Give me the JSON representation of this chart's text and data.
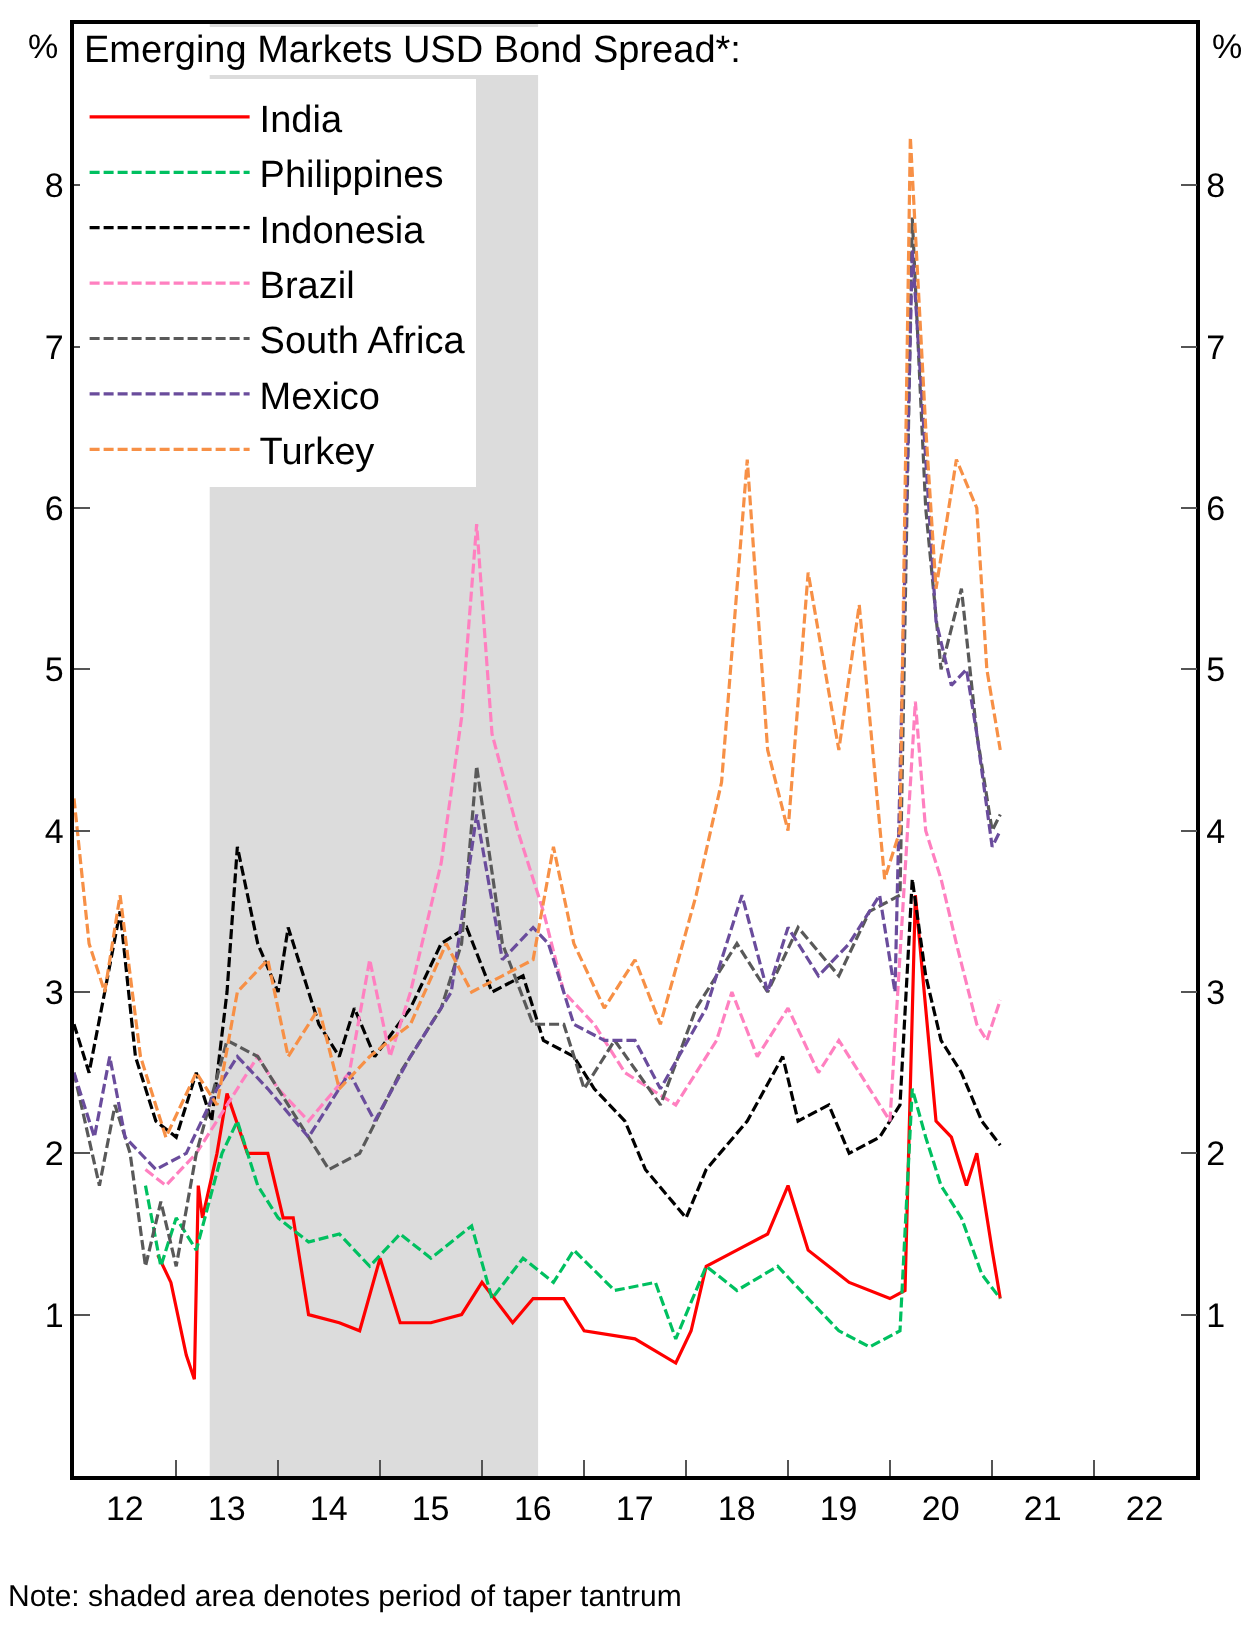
{
  "chart_data": {
    "type": "line",
    "title": "Emerging Markets USD Bond Spread*:",
    "ylabel": "%",
    "y2label": "%",
    "annotations": [
      "Note: shaded area denotes period of taper tantrum"
    ],
    "xlim": [
      "2012-01-01",
      "2023-01-01"
    ],
    "ylim": [
      0,
      9
    ],
    "y2lim": [
      0,
      9
    ],
    "xticks": [
      {
        "value": "2012-07",
        "label": "12"
      },
      {
        "value": "2013-07",
        "label": "13"
      },
      {
        "value": "2014-07",
        "label": "14"
      },
      {
        "value": "2015-07",
        "label": "15"
      },
      {
        "value": "2016-07",
        "label": "16"
      },
      {
        "value": "2017-07",
        "label": "17"
      },
      {
        "value": "2018-07",
        "label": "18"
      },
      {
        "value": "2019-07",
        "label": "19"
      },
      {
        "value": "2020-07",
        "label": "20"
      },
      {
        "value": "2021-07",
        "label": "21"
      },
      {
        "value": "2022-07",
        "label": "22"
      },
      {
        "value": "2013-01",
        "label": null
      },
      {
        "value": "2014-01",
        "label": null
      },
      {
        "value": "2015-01",
        "label": null
      },
      {
        "value": "2016-01",
        "label": null
      },
      {
        "value": "2017-01",
        "label": null
      },
      {
        "value": "2018-01",
        "label": null
      },
      {
        "value": "2019-01",
        "label": null
      },
      {
        "value": "2020-01",
        "label": null
      },
      {
        "value": "2021-01",
        "label": null
      },
      {
        "value": "2022-01",
        "label": null
      }
    ],
    "yticks": [
      1,
      2,
      3,
      4,
      5,
      6,
      7,
      8
    ],
    "y2ticks": [
      1,
      2,
      3,
      4,
      5,
      6,
      7,
      8
    ],
    "bands": [
      {
        "axis": "x",
        "from": "2013-05-01",
        "to": "2016-07-20",
        "color": "#dcdcdc"
      }
    ],
    "grid": false,
    "legend": "top left",
    "marker": "none",
    "series": [
      {
        "name": "India",
        "color": "#ff0000",
        "line_style": "solid",
        "x": [
          "2012-10-27",
          "2012-12-13",
          "2013-02-06",
          "2013-03-07",
          "2013-03-21",
          "2013-04-05",
          "2013-05-27",
          "2013-07-02",
          "2013-09-13",
          "2013-11-25",
          "2014-01-19",
          "2014-02-24",
          "2014-04-20",
          "2014-08-08",
          "2014-10-20",
          "2015-01-01",
          "2015-03-14",
          "2015-07-02",
          "2015-10-20",
          "2016-01-01",
          "2016-04-20",
          "2016-07-02",
          "2016-10-20",
          "2017-01-01",
          "2017-07-02",
          "2017-11-25",
          "2018-01-19",
          "2018-03-14",
          "2018-07-02",
          "2018-10-20",
          "2019-01-01",
          "2019-03-14",
          "2019-08-08",
          "2020-01-01",
          "2020-02-24",
          "2020-04-01",
          "2020-06-14",
          "2020-08-08",
          "2020-10-01",
          "2020-11-07",
          "2021-01-01",
          "2021-01-30"
        ],
        "values": [
          1.37,
          1.2,
          0.75,
          0.6,
          1.8,
          1.6,
          2.0,
          2.37,
          2.0,
          2.0,
          1.6,
          1.6,
          1.0,
          0.95,
          0.9,
          1.35,
          0.95,
          0.95,
          1.0,
          1.2,
          0.95,
          1.1,
          1.1,
          0.9,
          0.85,
          0.7,
          0.9,
          1.3,
          1.4,
          1.5,
          1.8,
          1.4,
          1.2,
          1.1,
          1.15,
          3.6,
          2.2,
          2.1,
          1.8,
          2.0,
          1.4,
          1.1
        ]
      },
      {
        "name": "Philippines",
        "color": "#00c060",
        "line_style": "dashed",
        "x": [
          "2012-09-13",
          "2012-11-07",
          "2013-01-01",
          "2013-03-14",
          "2013-06-14",
          "2013-08-08",
          "2013-10-20",
          "2014-01-01",
          "2014-04-20",
          "2014-08-08",
          "2014-11-25",
          "2015-03-14",
          "2015-07-02",
          "2015-11-25",
          "2016-02-06",
          "2016-05-27",
          "2016-09-13",
          "2016-11-25",
          "2017-04-20",
          "2017-09-13",
          "2017-11-25",
          "2018-03-14",
          "2018-07-02",
          "2018-11-25",
          "2019-03-14",
          "2019-07-02",
          "2019-10-20",
          "2020-02-06",
          "2020-03-21",
          "2020-05-08",
          "2020-07-02",
          "2020-09-13",
          "2020-11-25",
          "2021-01-30"
        ],
        "values": [
          1.8,
          1.3,
          1.6,
          1.4,
          2.0,
          2.2,
          1.8,
          1.6,
          1.45,
          1.5,
          1.3,
          1.5,
          1.35,
          1.55,
          1.1,
          1.35,
          1.2,
          1.4,
          1.15,
          1.2,
          0.85,
          1.3,
          1.15,
          1.3,
          1.1,
          0.9,
          0.8,
          0.9,
          2.4,
          2.1,
          1.8,
          1.6,
          1.25,
          1.1
        ]
      },
      {
        "name": "Indonesia",
        "color": "#000000",
        "line_style": "dashed",
        "x": [
          "2012-01-01",
          "2012-02-24",
          "2012-04-20",
          "2012-06-14",
          "2012-08-08",
          "2012-10-20",
          "2013-01-01",
          "2013-03-14",
          "2013-05-08",
          "2013-07-02",
          "2013-08-08",
          "2013-10-20",
          "2014-01-01",
          "2014-02-06",
          "2014-05-27",
          "2014-08-08",
          "2014-10-01",
          "2014-12-13",
          "2015-04-20",
          "2015-08-08",
          "2015-11-07",
          "2016-02-06",
          "2016-05-27",
          "2016-08-08",
          "2016-11-25",
          "2017-02-06",
          "2017-05-27",
          "2017-08-08",
          "2018-01-01",
          "2018-03-14",
          "2018-08-08",
          "2018-12-13",
          "2019-02-06",
          "2019-05-27",
          "2019-08-08",
          "2019-11-25",
          "2020-02-06",
          "2020-03-21",
          "2020-05-08",
          "2020-07-02",
          "2020-09-13",
          "2020-11-25",
          "2021-01-30"
        ],
        "values": [
          2.8,
          2.5,
          3.0,
          3.5,
          2.6,
          2.2,
          2.1,
          2.5,
          2.2,
          3.0,
          3.9,
          3.3,
          3.0,
          3.4,
          2.8,
          2.6,
          2.9,
          2.6,
          2.9,
          3.3,
          3.4,
          3.0,
          3.1,
          2.7,
          2.6,
          2.4,
          2.2,
          1.9,
          1.6,
          1.9,
          2.2,
          2.6,
          2.2,
          2.3,
          2.0,
          2.1,
          2.3,
          3.7,
          3.1,
          2.7,
          2.5,
          2.2,
          2.05
        ]
      },
      {
        "name": "Brazil",
        "color": "#ff80c0",
        "line_style": "dashed",
        "x": [
          "2012-09-13",
          "2012-11-25",
          "2013-03-14",
          "2013-07-02",
          "2013-10-20",
          "2014-01-01",
          "2014-04-20",
          "2014-09-13",
          "2014-11-25",
          "2015-02-06",
          "2015-04-20",
          "2015-08-08",
          "2015-10-20",
          "2015-12-13",
          "2016-02-06",
          "2016-05-08",
          "2016-08-08",
          "2016-10-20",
          "2017-02-06",
          "2017-05-27",
          "2017-11-25",
          "2018-04-20",
          "2018-06-14",
          "2018-09-13",
          "2019-01-01",
          "2019-04-20",
          "2019-07-02",
          "2019-10-20",
          "2020-01-01",
          "2020-04-01",
          "2020-05-08",
          "2020-07-02",
          "2020-08-26",
          "2020-11-07",
          "2020-12-13",
          "2021-01-30"
        ],
        "values": [
          1.9,
          1.8,
          2.0,
          2.3,
          2.6,
          2.4,
          2.2,
          2.5,
          3.2,
          2.6,
          3.0,
          3.8,
          4.7,
          5.9,
          4.6,
          4.0,
          3.5,
          3.0,
          2.8,
          2.5,
          2.3,
          2.7,
          3.0,
          2.6,
          2.9,
          2.5,
          2.7,
          2.4,
          2.2,
          4.8,
          4.0,
          3.7,
          3.3,
          2.8,
          2.7,
          2.95
        ]
      },
      {
        "name": "South Africa",
        "color": "#595959",
        "line_style": "dashed",
        "x": [
          "2012-01-01",
          "2012-04-01",
          "2012-05-27",
          "2012-07-20",
          "2012-09-13",
          "2012-11-07",
          "2013-01-01",
          "2013-03-14",
          "2013-07-02",
          "2013-10-20",
          "2014-02-06",
          "2014-07-02",
          "2014-10-20",
          "2015-03-14",
          "2015-08-08",
          "2015-10-20",
          "2015-12-13",
          "2016-03-14",
          "2016-07-02",
          "2016-10-20",
          "2017-01-01",
          "2017-04-20",
          "2017-10-01",
          "2018-02-06",
          "2018-07-02",
          "2018-10-20",
          "2019-02-06",
          "2019-07-02",
          "2019-10-20",
          "2020-02-06",
          "2020-03-21",
          "2020-05-08",
          "2020-07-02",
          "2020-09-13",
          "2020-11-07",
          "2021-01-01",
          "2021-01-30"
        ],
        "values": [
          2.5,
          1.8,
          2.3,
          2.0,
          1.3,
          1.7,
          1.3,
          2.0,
          2.7,
          2.6,
          2.3,
          1.9,
          2.0,
          2.5,
          2.9,
          3.3,
          4.4,
          3.3,
          2.8,
          2.8,
          2.4,
          2.7,
          2.3,
          2.9,
          3.3,
          3.0,
          3.4,
          3.1,
          3.5,
          3.6,
          7.8,
          6.0,
          5.0,
          5.5,
          4.6,
          4.0,
          4.1
        ]
      },
      {
        "name": "Mexico",
        "color": "#6a4c9c",
        "line_style": "dashed",
        "x": [
          "2012-01-01",
          "2012-03-14",
          "2012-05-08",
          "2012-07-02",
          "2012-10-20",
          "2013-02-06",
          "2013-05-27",
          "2013-08-08",
          "2013-11-25",
          "2014-04-20",
          "2014-09-13",
          "2014-12-13",
          "2015-04-20",
          "2015-09-13",
          "2015-12-13",
          "2016-03-14",
          "2016-07-02",
          "2016-08-26",
          "2016-11-25",
          "2017-03-14",
          "2017-07-02",
          "2017-10-01",
          "2018-03-14",
          "2018-07-20",
          "2018-10-20",
          "2019-01-01",
          "2019-04-20",
          "2019-08-08",
          "2019-11-25",
          "2020-01-19",
          "2020-03-21",
          "2020-04-20",
          "2020-06-14",
          "2020-08-08",
          "2020-10-01",
          "2020-11-07",
          "2021-01-01",
          "2021-01-30"
        ],
        "values": [
          2.5,
          2.1,
          2.6,
          2.1,
          1.9,
          2.0,
          2.4,
          2.6,
          2.4,
          2.1,
          2.5,
          2.2,
          2.6,
          3.0,
          4.1,
          3.2,
          3.4,
          3.3,
          2.8,
          2.7,
          2.7,
          2.4,
          2.9,
          3.6,
          3.0,
          3.4,
          3.1,
          3.3,
          3.6,
          3.0,
          7.6,
          6.8,
          5.3,
          4.9,
          5.0,
          4.6,
          3.9,
          4.0
        ]
      },
      {
        "name": "Turkey",
        "color": "#f79046",
        "line_style": "dashed",
        "x": [
          "2012-01-01",
          "2012-02-24",
          "2012-04-20",
          "2012-06-14",
          "2012-08-26",
          "2012-11-25",
          "2013-03-14",
          "2013-05-27",
          "2013-08-08",
          "2013-11-25",
          "2014-02-06",
          "2014-05-27",
          "2014-08-08",
          "2014-11-25",
          "2015-04-20",
          "2015-08-26",
          "2015-11-25",
          "2016-03-14",
          "2016-07-02",
          "2016-09-13",
          "2016-11-25",
          "2017-03-14",
          "2017-07-02",
          "2017-10-01",
          "2018-02-06",
          "2018-05-08",
          "2018-08-08",
          "2018-10-20",
          "2019-01-01",
          "2019-03-14",
          "2019-07-02",
          "2019-09-13",
          "2019-12-13",
          "2020-02-06",
          "2020-03-14",
          "2020-05-08",
          "2020-06-14",
          "2020-08-26",
          "2020-11-07",
          "2020-12-13",
          "2021-01-30"
        ],
        "values": [
          4.2,
          3.3,
          3.0,
          3.6,
          2.6,
          2.1,
          2.5,
          2.3,
          3.0,
          3.2,
          2.6,
          2.9,
          2.4,
          2.6,
          2.8,
          3.3,
          3.0,
          3.1,
          3.2,
          3.9,
          3.3,
          2.9,
          3.2,
          2.8,
          3.6,
          4.3,
          6.3,
          4.5,
          4.0,
          5.6,
          4.5,
          5.4,
          3.7,
          4.0,
          8.3,
          6.5,
          5.5,
          6.3,
          6.0,
          5.0,
          4.5
        ]
      }
    ]
  }
}
